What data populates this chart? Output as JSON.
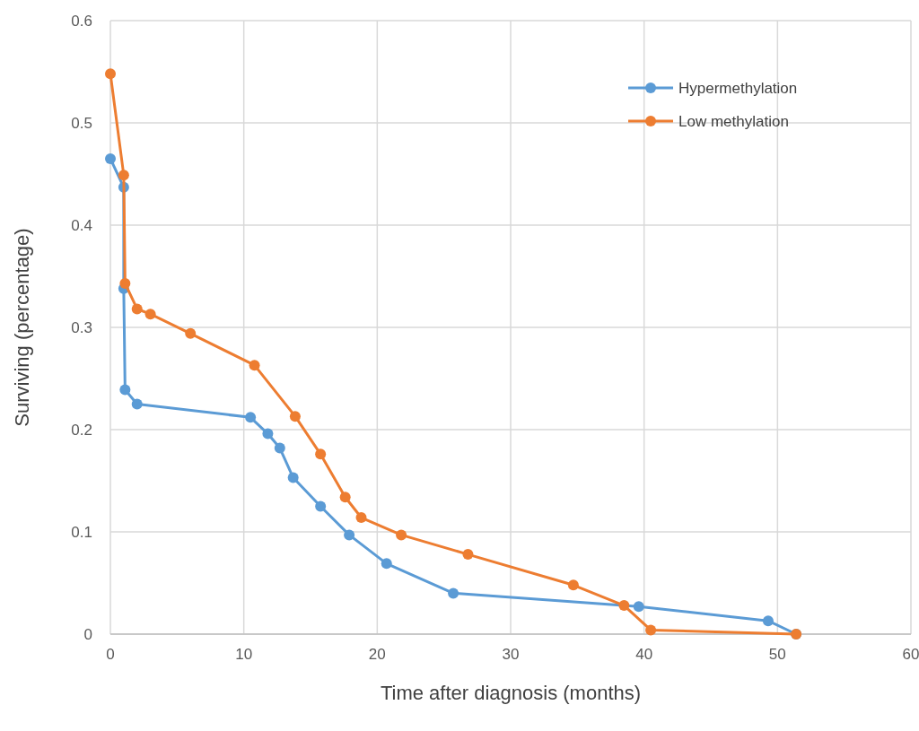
{
  "chart_data": {
    "type": "line",
    "xlabel": "Time after diagnosis (months)",
    "ylabel": "Surviving (percentage)",
    "xlim": [
      0,
      60
    ],
    "xticks": [
      0,
      10,
      20,
      30,
      40,
      50,
      60
    ],
    "ylim": [
      0,
      0.6
    ],
    "yticks": [
      0,
      0.1,
      0.2,
      0.3,
      0.4,
      0.5,
      0.6
    ],
    "grid": true,
    "legend": "top right",
    "marker": "circle",
    "series": [
      {
        "name": "Hypermethylation",
        "color": "#5b9bd5",
        "x": [
          0,
          1,
          1,
          1.1,
          2,
          10.5,
          11.8,
          12.7,
          13.7,
          15.75,
          17.9,
          20.7,
          25.7,
          39.6,
          49.3,
          51.4
        ],
        "values": [
          0.465,
          0.437,
          0.338,
          0.239,
          0.225,
          0.212,
          0.196,
          0.182,
          0.153,
          0.125,
          0.097,
          0.069,
          0.04,
          0.027,
          0.013,
          0
        ]
      },
      {
        "name": "Low methylation",
        "color": "#ed7d31",
        "x": [
          0,
          1,
          1.1,
          2,
          3,
          6,
          10.8,
          13.85,
          15.75,
          17.6,
          18.8,
          21.8,
          26.8,
          34.7,
          38.5,
          40.5,
          51.4
        ],
        "values": [
          0.548,
          0.449,
          0.343,
          0.318,
          0.313,
          0.294,
          0.263,
          0.213,
          0.176,
          0.134,
          0.114,
          0.097,
          0.078,
          0.048,
          0.028,
          0.004,
          0
        ]
      }
    ]
  }
}
